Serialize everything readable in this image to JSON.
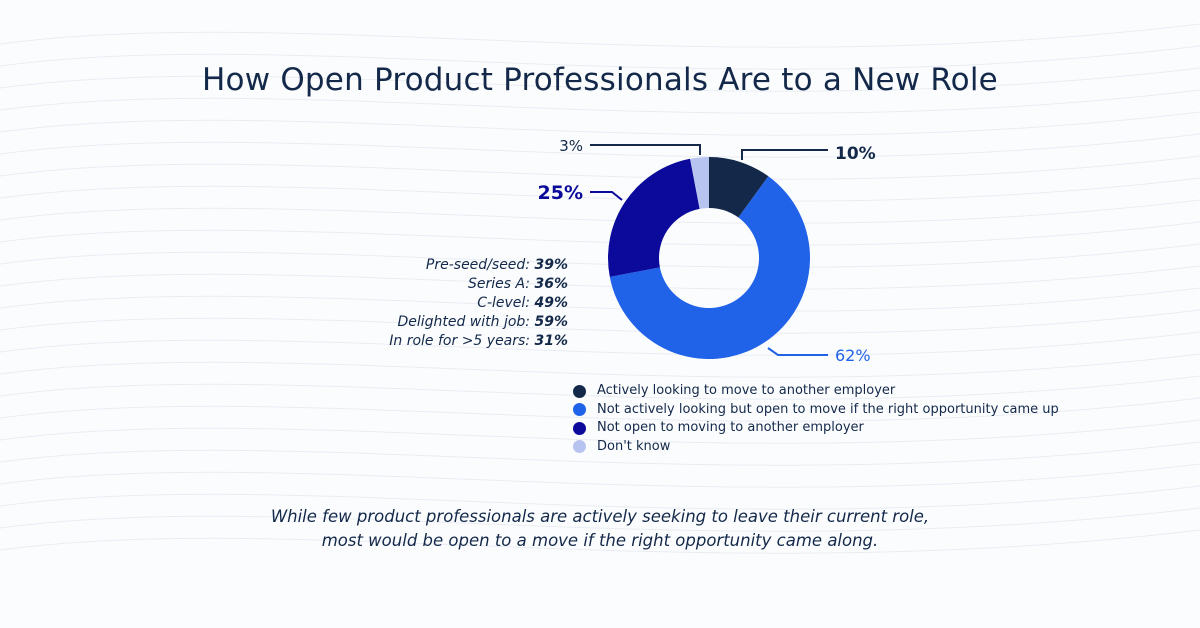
{
  "chart_data": {
    "type": "pie",
    "title": "How Open Product Professionals Are to a New Role",
    "donut": true,
    "slices": [
      {
        "name": "Actively looking to move to another employer",
        "value": 10,
        "label": "10%",
        "color": "#14294a"
      },
      {
        "name": "Not actively looking but open to move if the right opportunity came up",
        "value": 62,
        "label": "62%",
        "color": "#2163e8"
      },
      {
        "name": "Not open to moving to another employer",
        "value": 25,
        "label": "25%",
        "color": "#0c0a9a"
      },
      {
        "name": "Don't know",
        "value": 3,
        "label": "3%",
        "color": "#b8c4f0"
      }
    ],
    "legend_position": "bottom",
    "annotations": [
      {
        "label": "Pre-seed/seed:",
        "value": "39%"
      },
      {
        "label": "Series A:",
        "value": "36%"
      },
      {
        "label": "C-level:",
        "value": "49%"
      },
      {
        "label": "Delighted with job:",
        "value": "59%"
      },
      {
        "label": "In role for >5 years:",
        "value": "31%"
      }
    ],
    "caption": [
      "While few product professionals are actively seeking to leave their current role,",
      "most would be open to a move if the right opportunity came along."
    ]
  }
}
